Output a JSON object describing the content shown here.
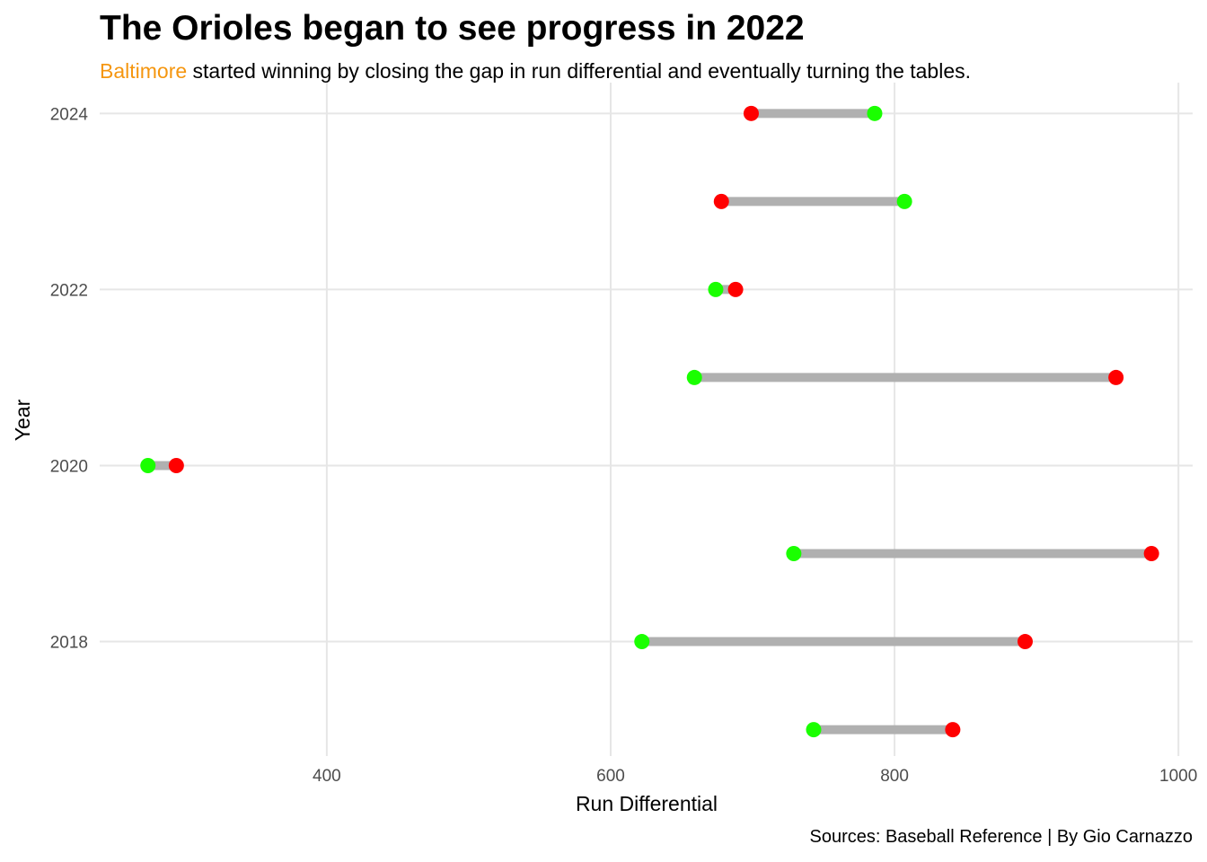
{
  "title": "The Orioles began to see progress in 2022",
  "subtitle_highlight": "Baltimore",
  "subtitle_rest": " started winning by closing the gap in run differential and eventually turning the tables.",
  "caption": "Sources: Baseball Reference | By Gio Carnazzo",
  "colors": {
    "runs_scored": "#1aff00",
    "runs_allowed": "#ff0000",
    "segment": "#b0b0b0",
    "grid": "#e6e6e6",
    "highlight": "#f5960f"
  },
  "chart_data": {
    "type": "dumbbell",
    "xlabel": "Run Differential",
    "ylabel": "Year",
    "xlim": [
      240,
      1010
    ],
    "ylim": [
      2016.7,
      2024.35
    ],
    "x_ticks": [
      400,
      600,
      800,
      1000
    ],
    "y_ticks": [
      2018,
      2020,
      2022,
      2024
    ],
    "grid": true,
    "legend": "none",
    "rows": [
      {
        "year": 2017,
        "green": 743,
        "red": 841
      },
      {
        "year": 2018,
        "green": 622,
        "red": 892
      },
      {
        "year": 2019,
        "green": 729,
        "red": 981
      },
      {
        "year": 2020,
        "green": 274,
        "red": 294
      },
      {
        "year": 2021,
        "green": 659,
        "red": 956
      },
      {
        "year": 2022,
        "green": 674,
        "red": 688
      },
      {
        "year": 2023,
        "green": 807,
        "red": 678
      },
      {
        "year": 2024,
        "green": 786,
        "red": 699
      }
    ]
  }
}
